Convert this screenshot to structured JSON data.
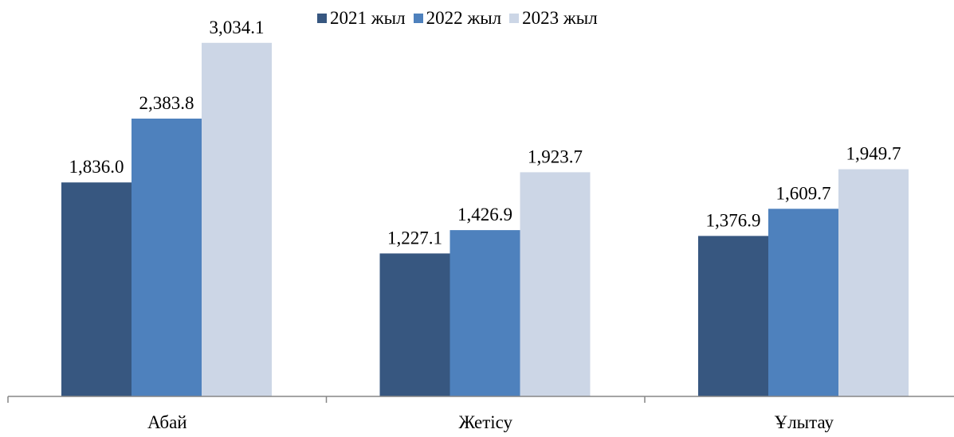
{
  "chart_data": {
    "type": "bar",
    "categories": [
      "Абай",
      "Жетісу",
      "Ұлытау"
    ],
    "series": [
      {
        "name": "2021 жыл",
        "values": [
          1836.0,
          1227.1,
          1376.9
        ],
        "labels": [
          "1,836.0",
          "1,227.1",
          "1,376.9"
        ],
        "color": "#375780"
      },
      {
        "name": "2022 жыл",
        "values": [
          2383.8,
          1426.9,
          1609.7
        ],
        "labels": [
          "2,383.8",
          "1,426.9",
          "1,609.7"
        ],
        "color": "#4e81bd"
      },
      {
        "name": "2023 жыл",
        "values": [
          3034.1,
          1923.7,
          1949.7
        ],
        "labels": [
          "3,034.1",
          "1,923.7",
          "1,949.7"
        ],
        "color": "#ccd6e6"
      }
    ],
    "title": "",
    "xlabel": "",
    "ylabel": "",
    "ylim": [
      0,
      3500
    ],
    "grid": false,
    "legend_position": "top"
  }
}
